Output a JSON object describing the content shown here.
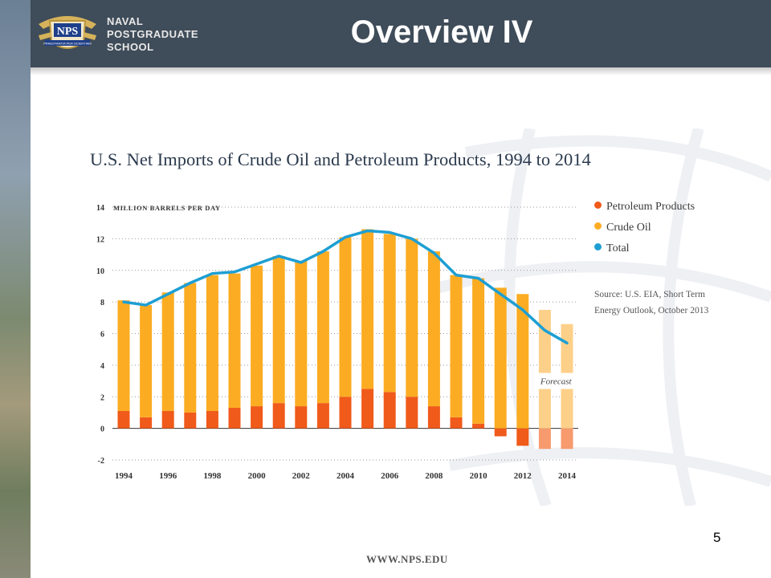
{
  "header": {
    "title": "Overview  IV",
    "school_lines": [
      "NAVAL",
      "POSTGRADUATE",
      "SCHOOL"
    ],
    "logo_text": "NPS",
    "motto": "PRAESTANTIA PER SCIENTIAM"
  },
  "chart_data": {
    "type": "bar",
    "title": "U.S. Net Imports of Crude Oil and Petroleum Products, 1994 to 2014",
    "ylabel": "MILLION BARRELS PER DAY",
    "ylim": [
      -2,
      14
    ],
    "y_ticks": [
      "14",
      "12",
      "10",
      "8",
      "6",
      "4",
      "2",
      "0",
      "-2"
    ],
    "x_tick_labels": [
      "1994",
      "1996",
      "1998",
      "2000",
      "2002",
      "2004",
      "2006",
      "2008",
      "2010",
      "2012",
      "2014"
    ],
    "categories": [
      "1994",
      "1995",
      "1996",
      "1997",
      "1998",
      "1999",
      "2000",
      "2001",
      "2002",
      "2003",
      "2004",
      "2005",
      "2006",
      "2007",
      "2008",
      "2009",
      "2010",
      "2011",
      "2012",
      "2013",
      "2014"
    ],
    "series": [
      {
        "name": "Petroleum Products",
        "type": "bar",
        "color": "#f05a1a",
        "values": [
          1.1,
          0.7,
          1.1,
          1.0,
          1.1,
          1.3,
          1.4,
          1.6,
          1.4,
          1.6,
          2.0,
          2.5,
          2.3,
          2.0,
          1.4,
          0.7,
          0.3,
          -0.5,
          -1.1,
          -1.3,
          -1.3
        ]
      },
      {
        "name": "Crude Oil",
        "type": "bar",
        "color": "#fbac22",
        "values": [
          7.0,
          7.1,
          7.5,
          8.2,
          8.6,
          8.5,
          8.9,
          9.3,
          9.2,
          9.6,
          10.1,
          10.1,
          10.0,
          10.0,
          9.8,
          9.0,
          9.2,
          8.9,
          8.5,
          7.5,
          6.6
        ]
      },
      {
        "name": "Total",
        "type": "line",
        "color": "#1e9fd3",
        "values": [
          8.0,
          7.8,
          8.5,
          9.2,
          9.8,
          9.9,
          10.4,
          10.9,
          10.5,
          11.2,
          12.1,
          12.5,
          12.4,
          12.0,
          11.1,
          9.7,
          9.5,
          8.5,
          7.5,
          6.2,
          5.4
        ]
      }
    ],
    "forecast_label": "Forecast",
    "forecast_years": [
      "2013",
      "2014"
    ],
    "legend_position": "right",
    "grid": "dotted horizontal",
    "source": "Source: U.S. EIA, Short Term Energy Outlook, October 2013"
  },
  "footer": {
    "page_number": "5",
    "url": "WWW.NPS.EDU"
  }
}
